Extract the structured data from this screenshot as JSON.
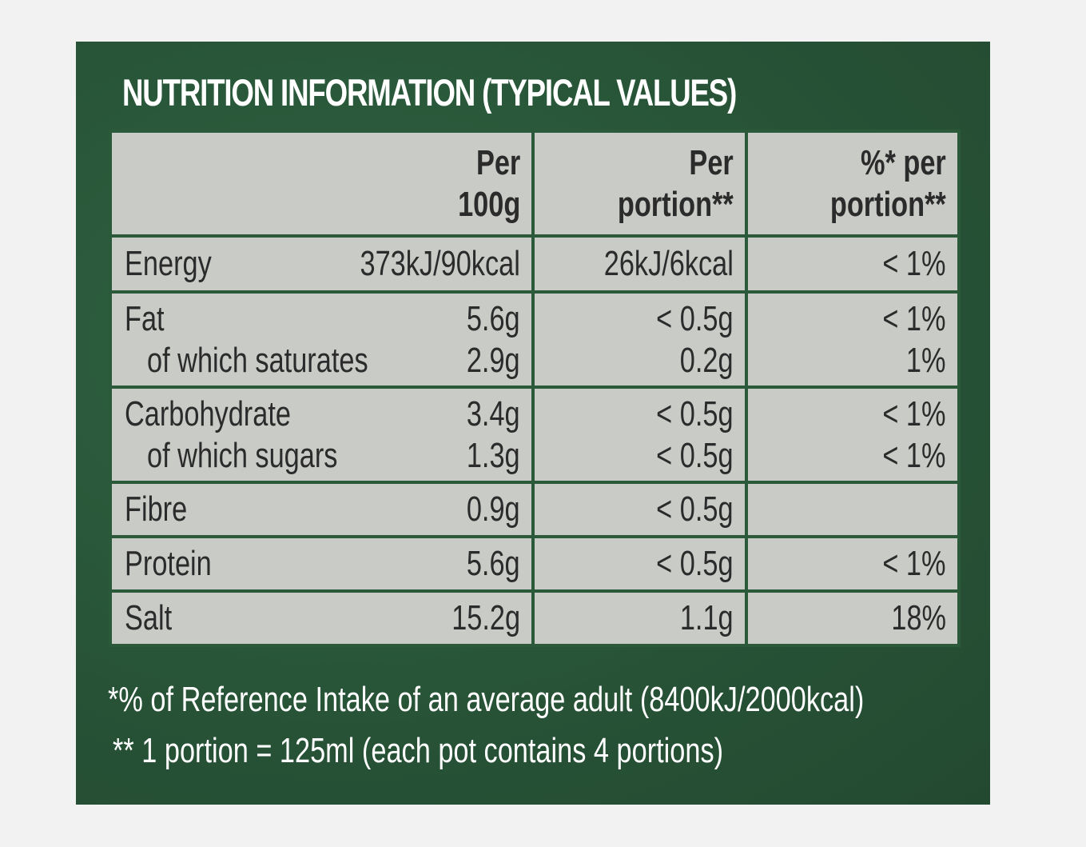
{
  "title": "NUTRITION INFORMATION (TYPICAL VALUES)",
  "headers": {
    "col1_line1": "Per",
    "col1_line2": "100g",
    "col2_line1": "Per",
    "col2_line2": "portion**",
    "col3_line1": "%* per",
    "col3_line2": "portion**"
  },
  "rows": [
    {
      "label": "Energy",
      "per100g": "373kJ/90kcal",
      "perPortion": "26kJ/6kcal",
      "pct": "< 1%"
    },
    {
      "label": "Fat",
      "sublabel": "of which saturates",
      "per100g": "5.6g",
      "per100g_sub": "2.9g",
      "perPortion": "< 0.5g",
      "perPortion_sub": "0.2g",
      "pct": "< 1%",
      "pct_sub": "1%"
    },
    {
      "label": "Carbohydrate",
      "sublabel": "of which sugars",
      "per100g": "3.4g",
      "per100g_sub": "1.3g",
      "perPortion": "< 0.5g",
      "perPortion_sub": "< 0.5g",
      "pct": "< 1%",
      "pct_sub": "< 1%"
    },
    {
      "label": "Fibre",
      "per100g": "0.9g",
      "perPortion": "< 0.5g",
      "pct": ""
    },
    {
      "label": "Protein",
      "per100g": "5.6g",
      "perPortion": "< 0.5g",
      "pct": "< 1%"
    },
    {
      "label": "Salt",
      "per100g": "15.2g",
      "perPortion": "1.1g",
      "pct": "18%"
    }
  ],
  "footnotes": {
    "line1": "*% of Reference Intake of an average adult (8400kJ/2000kcal)",
    "line2": "** 1 portion = 125ml (each pot contains 4 portions)"
  },
  "colors": {
    "panel_green": "#2a5a3a",
    "cell_grey": "#c9cbc7",
    "text_dark": "#2b2b2b",
    "page_background": "#f2f2f2"
  }
}
